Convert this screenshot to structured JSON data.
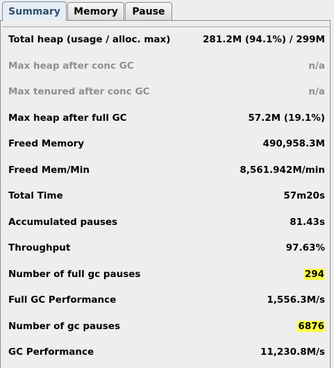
{
  "tabs": [
    {
      "label": "Summary",
      "active": true
    },
    {
      "label": "Memory",
      "active": false
    },
    {
      "label": "Pause",
      "active": false
    }
  ],
  "highlight_color": "#ffff40",
  "rows": [
    {
      "label": "Total heap (usage / alloc. max)",
      "value": "281.2M (94.1%) / 299M",
      "enabled": true,
      "highlighted": false
    },
    {
      "label": "Max heap after conc GC",
      "value": "n/a",
      "enabled": false,
      "highlighted": false
    },
    {
      "label": "Max tenured after conc GC",
      "value": "n/a",
      "enabled": false,
      "highlighted": false
    },
    {
      "label": "Max heap after full GC",
      "value": "57.2M (19.1%)",
      "enabled": true,
      "highlighted": false
    },
    {
      "label": "Freed Memory",
      "value": "490,958.3M",
      "enabled": true,
      "highlighted": false
    },
    {
      "label": "Freed Mem/Min",
      "value": "8,561.942M/min",
      "enabled": true,
      "highlighted": false
    },
    {
      "label": "Total Time",
      "value": "57m20s",
      "enabled": true,
      "highlighted": false
    },
    {
      "label": "Accumulated pauses",
      "value": "81.43s",
      "enabled": true,
      "highlighted": false
    },
    {
      "label": "Throughput",
      "value": "97.63%",
      "enabled": true,
      "highlighted": false
    },
    {
      "label": "Number of full gc pauses",
      "value": "294",
      "enabled": true,
      "highlighted": true
    },
    {
      "label": "Full GC Performance",
      "value": "1,556.3M/s",
      "enabled": true,
      "highlighted": false
    },
    {
      "label": "Number of gc pauses",
      "value": "6876",
      "enabled": true,
      "highlighted": true
    },
    {
      "label": "GC Performance",
      "value": "11,230.8M/s",
      "enabled": true,
      "highlighted": false
    }
  ]
}
